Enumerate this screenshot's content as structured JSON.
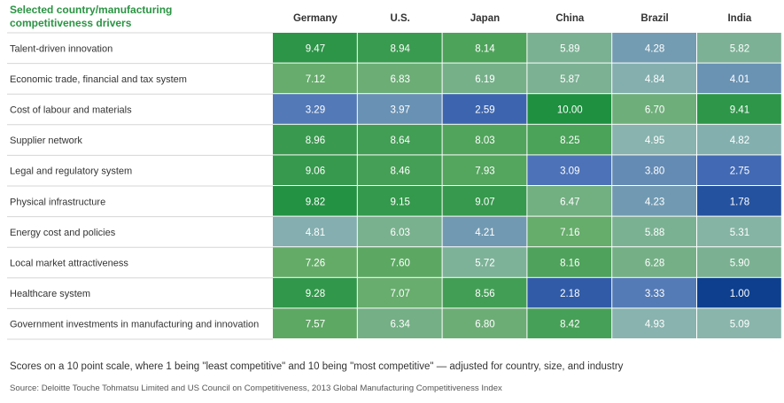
{
  "chart_data": {
    "type": "heatmap",
    "title": "Selected country/manufacturing competitiveness drivers",
    "title_lines": [
      "Selected country/manufacturing",
      "competitiveness drivers"
    ],
    "columns": [
      "Germany",
      "U.S.",
      "Japan",
      "China",
      "Brazil",
      "India"
    ],
    "rows": [
      "Talent-driven innovation",
      "Economic trade, financial and tax system",
      "Cost of labour and materials",
      "Supplier network",
      "Legal and regulatory system",
      "Physical infrastructure",
      "Energy cost and policies",
      "Local market attractiveness",
      "Healthcare system",
      "Government investments in manufacturing and innovation"
    ],
    "values": [
      [
        9.47,
        8.94,
        8.14,
        5.89,
        4.28,
        5.82
      ],
      [
        7.12,
        6.83,
        6.19,
        5.87,
        4.84,
        4.01
      ],
      [
        3.29,
        3.97,
        2.59,
        10.0,
        6.7,
        9.41
      ],
      [
        8.96,
        8.64,
        8.03,
        8.25,
        4.95,
        4.82
      ],
      [
        9.06,
        8.46,
        7.93,
        3.09,
        3.8,
        2.75
      ],
      [
        9.82,
        9.15,
        9.07,
        6.47,
        4.23,
        1.78
      ],
      [
        4.81,
        6.03,
        4.21,
        7.16,
        5.88,
        5.31
      ],
      [
        7.26,
        7.6,
        5.72,
        8.16,
        6.28,
        5.9
      ],
      [
        9.28,
        7.07,
        8.56,
        2.18,
        3.33,
        1.0
      ],
      [
        7.57,
        6.34,
        6.8,
        8.42,
        4.93,
        5.09
      ]
    ],
    "scale_range": [
      1,
      10
    ],
    "colors": {
      "low": "#0d3f8e",
      "low_mid": "#4a6fb8",
      "mid": "#8ab5ae",
      "high_mid": "#64ab67",
      "high": "#1e9040",
      "title": "#2a9443",
      "text": "#333333",
      "row_divider": "#d6d6d6"
    }
  },
  "notes": {
    "scale": "Scores on a 10 point scale, where 1 being \"least competitive\" and 10 being \"most competitive\" — adjusted for country, size, and industry",
    "source": "Source: Deloitte Touche Tohmatsu Limited and US Council on Competitiveness, 2013 Global Manufacturing Competitiveness Index"
  }
}
